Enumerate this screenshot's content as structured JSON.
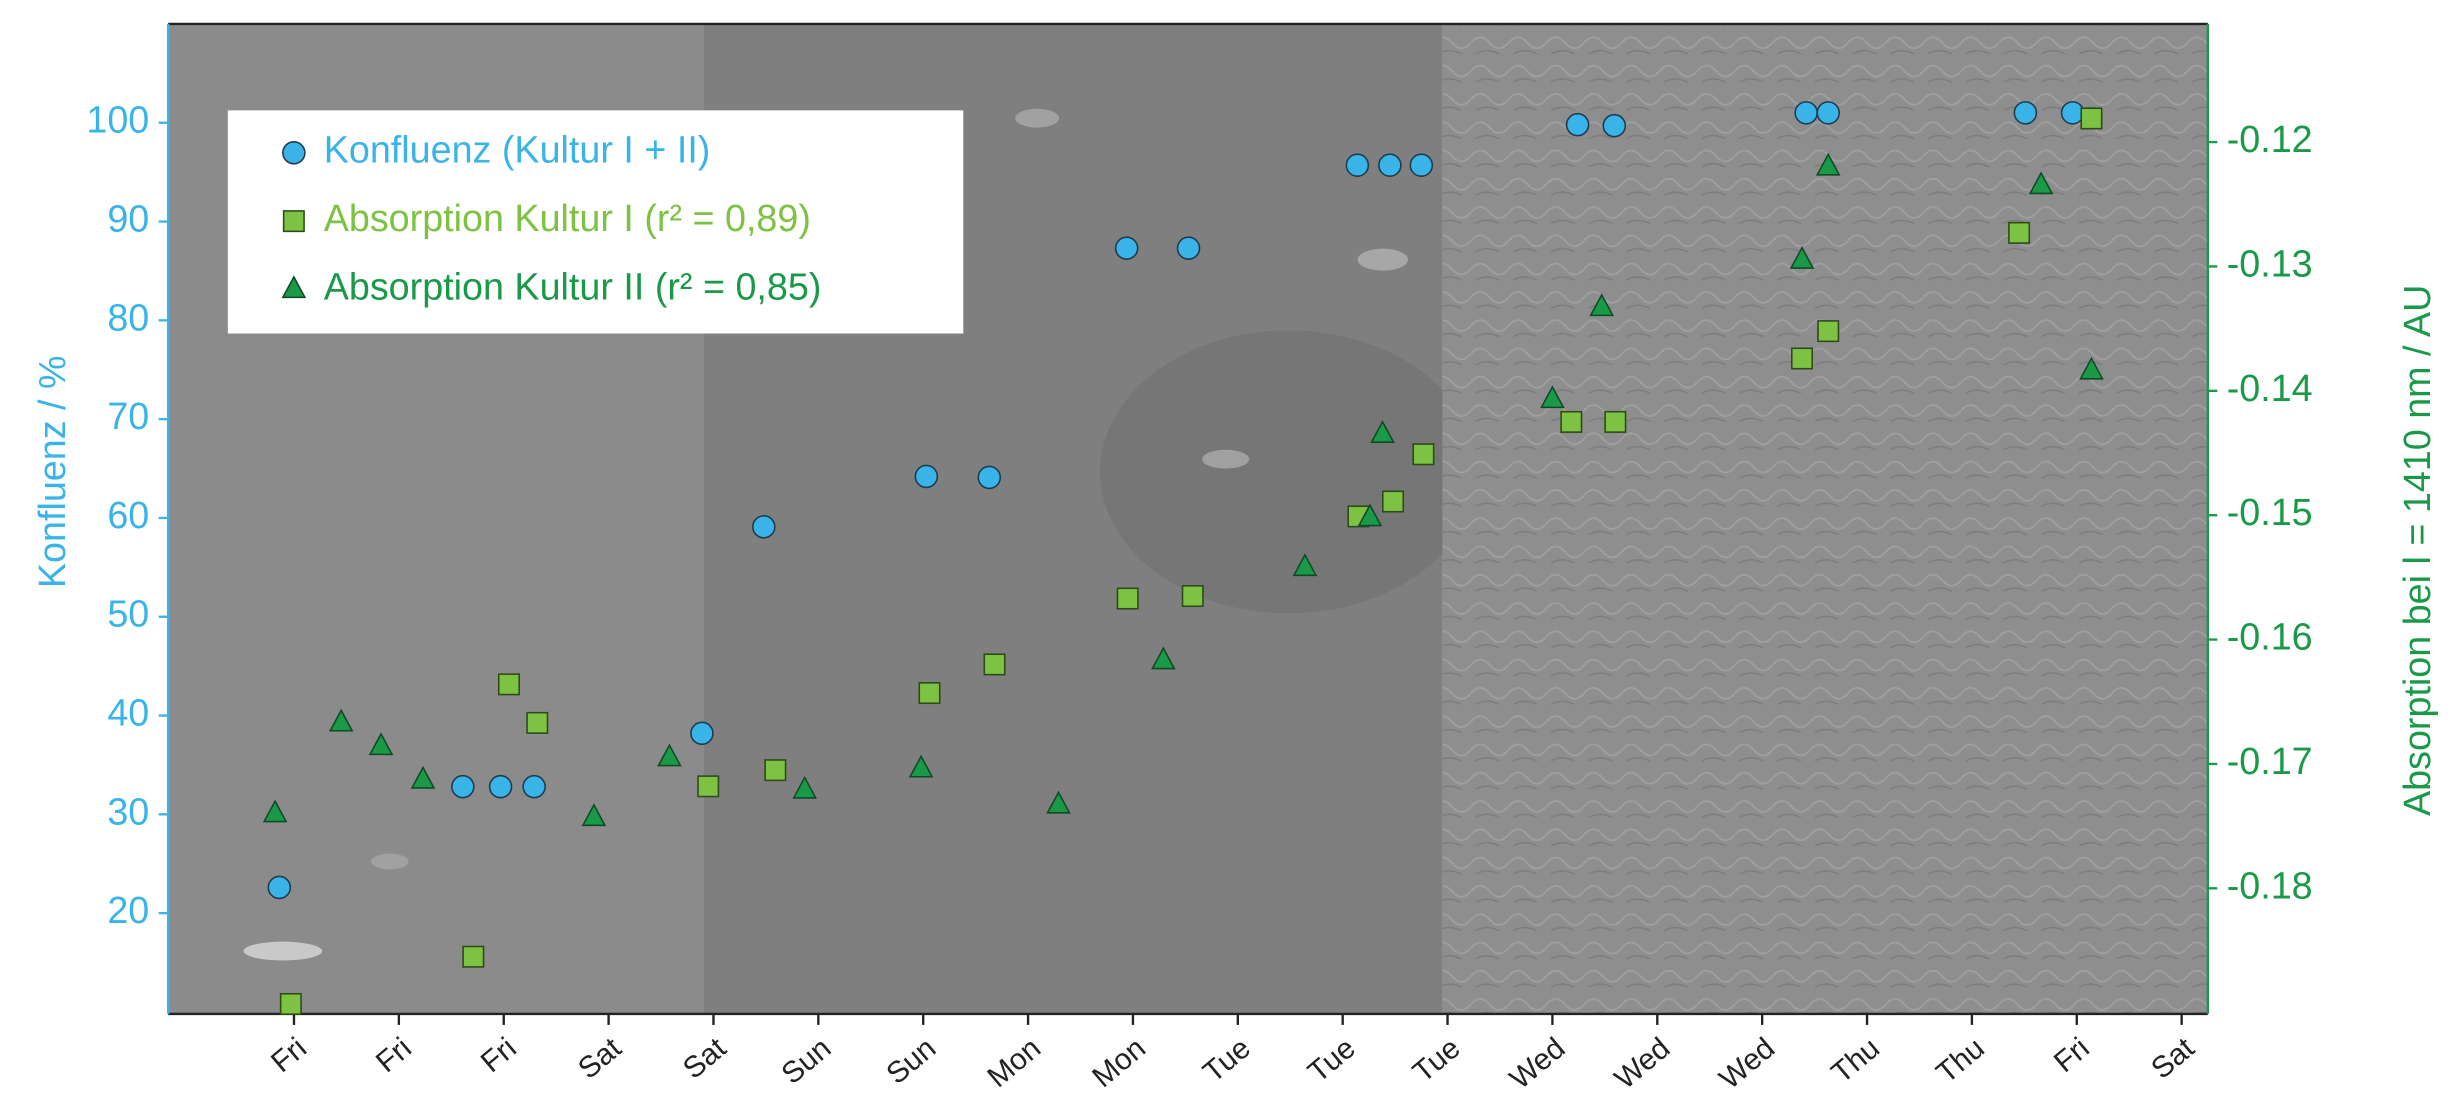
{
  "chart_data": {
    "type": "scatter",
    "y_label": "Konfluenz / %",
    "y2_label": "Absorption bei l  = 1410 nm / AU",
    "xlim": [
      -0.2,
      19.25
    ],
    "xticks": [
      {
        "value": 1,
        "label": "Fri"
      },
      {
        "value": 2,
        "label": "Fri"
      },
      {
        "value": 3,
        "label": "Fri"
      },
      {
        "value": 4,
        "label": "Sat"
      },
      {
        "value": 5,
        "label": "Sat"
      },
      {
        "value": 6,
        "label": "Sun"
      },
      {
        "value": 7,
        "label": "Sun"
      },
      {
        "value": 8,
        "label": "Mon"
      },
      {
        "value": 9,
        "label": "Mon"
      },
      {
        "value": 10,
        "label": "Tue"
      },
      {
        "value": 11,
        "label": "Tue"
      },
      {
        "value": 12,
        "label": "Tue"
      },
      {
        "value": 13,
        "label": "Wed"
      },
      {
        "value": 14,
        "label": "Wed"
      },
      {
        "value": 15,
        "label": "Wed"
      },
      {
        "value": 16,
        "label": "Thu"
      },
      {
        "value": 17,
        "label": "Thu"
      },
      {
        "value": 18,
        "label": "Fri"
      },
      {
        "value": 19,
        "label": "Sat"
      }
    ],
    "ylim": [
      9.8,
      110
    ],
    "yticks": [
      20,
      30,
      40,
      50,
      60,
      70,
      80,
      90,
      100
    ],
    "y2lim": [
      -0.1901,
      -0.1105
    ],
    "y2ticks": [
      -0.18,
      -0.17,
      -0.16,
      -0.15,
      -0.14,
      -0.13,
      -0.12
    ],
    "y_color": "#3ab4e8",
    "y2_color": "#1a9a48",
    "series": [
      {
        "name": "Konfluenz (Kultur I + II)",
        "color": "#3ab4e8",
        "marker": "circle",
        "axis": "y",
        "x": [
          0.86,
          2.61,
          2.97,
          3.29,
          4.89,
          5.48,
          7.03,
          7.63,
          8.94,
          9.53,
          11.14,
          11.45,
          11.75,
          13.24,
          13.59,
          15.42,
          15.63,
          17.51,
          17.96
        ],
        "values": [
          22.6,
          32.8,
          32.8,
          32.8,
          38.2,
          59.1,
          64.2,
          64.1,
          87.3,
          87.3,
          95.7,
          95.7,
          95.7,
          99.8,
          99.7,
          101,
          101,
          101,
          101
        ]
      },
      {
        "name": "Absorption Kultur I (r² = 0,89)",
        "color": "#7dc242",
        "marker": "square",
        "axis": "y2",
        "x": [
          0.97,
          2.71,
          3.05,
          3.32,
          4.95,
          5.59,
          7.06,
          7.68,
          8.95,
          9.57,
          11.15,
          11.48,
          11.77,
          13.18,
          13.6,
          15.38,
          15.63,
          17.45,
          18.14
        ],
        "values": [
          -0.1893,
          -0.1855,
          -0.1636,
          -0.1667,
          -0.1718,
          -0.1705,
          -0.1643,
          -0.162,
          -0.1567,
          -0.1565,
          -0.1501,
          -0.1489,
          -0.1451,
          -0.1425,
          -0.1425,
          -0.1374,
          -0.1352,
          -0.1273,
          -0.1181
        ]
      },
      {
        "name": "Absorption Kultur II (r² = 0,85)",
        "color": "#1a9a48",
        "marker": "triangle",
        "axis": "y2",
        "x": [
          0.82,
          1.45,
          1.83,
          2.23,
          3.86,
          4.58,
          5.87,
          6.98,
          8.29,
          9.29,
          10.64,
          11.26,
          11.38,
          13.0,
          13.47,
          15.38,
          15.63,
          17.66,
          18.14
        ],
        "values": [
          -0.174,
          -0.1667,
          -0.1686,
          -0.1713,
          -0.1743,
          -0.1695,
          -0.1721,
          -0.1704,
          -0.1733,
          -0.1617,
          -0.1542,
          -0.1502,
          -0.1435,
          -0.1407,
          -0.1333,
          -0.1295,
          -0.122,
          -0.1235,
          -0.1384
        ]
      }
    ]
  }
}
